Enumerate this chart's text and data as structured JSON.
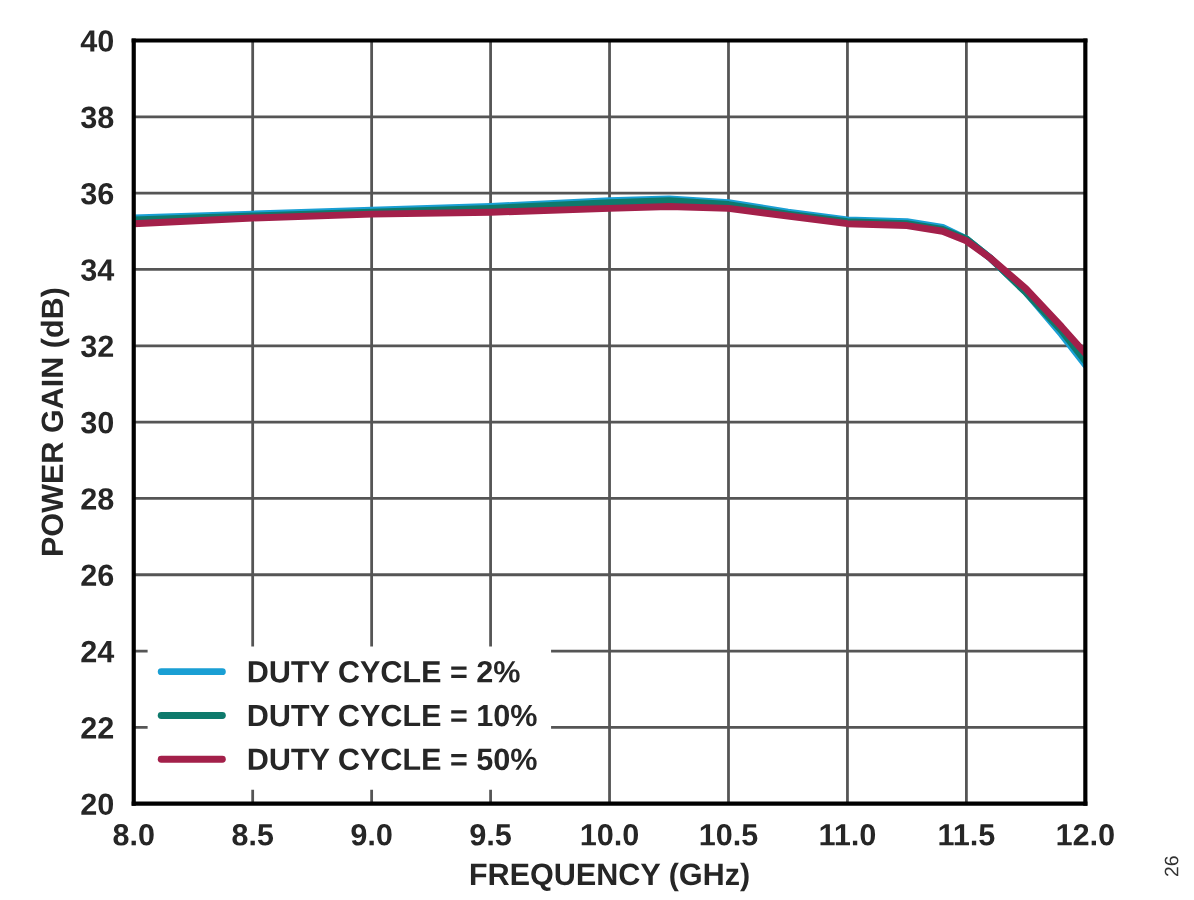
{
  "chart_data": {
    "type": "line",
    "xlabel": "FREQUENCY (GHz)",
    "ylabel": "POWER GAIN (dB)",
    "xlim": [
      8.0,
      12.0
    ],
    "xticks": [
      {
        "value": 8.0,
        "label": "8.0"
      },
      {
        "value": 8.5,
        "label": "8.5"
      },
      {
        "value": 9.0,
        "label": "9.0"
      },
      {
        "value": 9.5,
        "label": "9.5"
      },
      {
        "value": 10.0,
        "label": "10.0"
      },
      {
        "value": 10.5,
        "label": "10.5"
      },
      {
        "value": 11.0,
        "label": "11.0"
      },
      {
        "value": 11.5,
        "label": "11.5"
      },
      {
        "value": 12.0,
        "label": "12.0"
      }
    ],
    "ylim": [
      20,
      40
    ],
    "yticks": [
      20,
      22,
      24,
      26,
      28,
      30,
      32,
      34,
      36,
      38,
      40
    ],
    "grid": true,
    "legend": "bottom left",
    "x": [
      8.0,
      8.5,
      9.0,
      9.5,
      10.0,
      10.25,
      10.5,
      10.75,
      11.0,
      11.25,
      11.4,
      11.5,
      11.6,
      11.75,
      11.9,
      12.0
    ],
    "series": [
      {
        "name": "DUTY CYCLE = 2%",
        "color": "#1a9fd4",
        "values": [
          35.35,
          35.45,
          35.55,
          35.65,
          35.8,
          35.85,
          35.75,
          35.5,
          35.3,
          35.25,
          35.1,
          34.8,
          34.3,
          33.4,
          32.3,
          31.5
        ]
      },
      {
        "name": "DUTY CYCLE = 10%",
        "color": "#0e7a6c",
        "values": [
          35.3,
          35.4,
          35.5,
          35.6,
          35.75,
          35.8,
          35.7,
          35.45,
          35.25,
          35.2,
          35.05,
          34.8,
          34.3,
          33.4,
          32.4,
          31.6
        ]
      },
      {
        "name": "DUTY CYCLE = 50%",
        "color": "#a3204a",
        "values": [
          35.2,
          35.35,
          35.45,
          35.5,
          35.6,
          35.65,
          35.6,
          35.4,
          35.2,
          35.15,
          35.0,
          34.75,
          34.3,
          33.5,
          32.5,
          31.8
        ]
      }
    ],
    "annotations": [
      "26"
    ]
  }
}
